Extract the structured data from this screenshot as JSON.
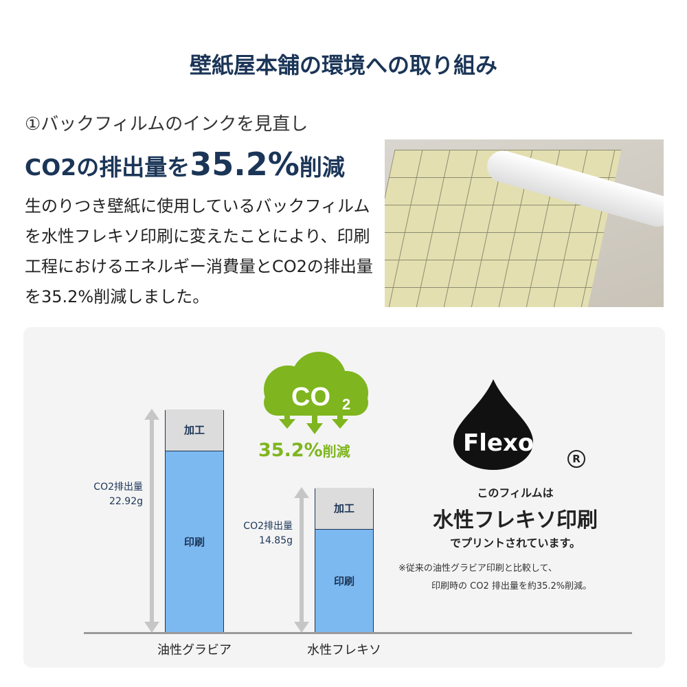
{
  "title": "壁紙屋本舗の環境への取り組み",
  "section": {
    "subtitle": "①バックフィルムのインクを見直し",
    "headline_pre": "CO2の排出量を",
    "headline_value": "35.2%",
    "headline_post": "削減",
    "body": "生のりつき壁紙に使用しているバックフィルムを水性フレキソ印刷に変えたことにより、印刷工程におけるエネルギー消費量とCO2の排出量を35.2%削減しました。"
  },
  "badge": {
    "cloud_text": "CO",
    "cloud_sub": "2",
    "reduction": "35.2%",
    "reduction_suffix": "削減"
  },
  "flexo": {
    "logo": "Flexo",
    "registered": "R",
    "line1": "このフィルムは",
    "line2": "水性フレキソ印刷",
    "line3": "でプリントされています。",
    "note1": "※従来の油性グラビア印刷と比較して、",
    "note2": "印刷時の CO2 排出量を約35.2%削減。"
  },
  "colors": {
    "navy": "#1b3557",
    "green": "#7fb51f",
    "printing": "#7cb9f0",
    "processing": "#dcdcdc"
  },
  "chart_data": {
    "type": "bar",
    "stacked": true,
    "categories": [
      "油性グラビア",
      "水性フレキソ"
    ],
    "series": [
      {
        "name": "印刷",
        "values": [
          18.62,
          10.55
        ]
      },
      {
        "name": "加工",
        "values": [
          4.3,
          4.3
        ]
      }
    ],
    "totals": [
      22.92,
      14.85
    ],
    "total_labels": [
      {
        "label": "CO2排出量",
        "value": "22.92g"
      },
      {
        "label": "CO2排出量",
        "value": "14.85g"
      }
    ],
    "ylim": [
      0,
      22.92
    ]
  }
}
